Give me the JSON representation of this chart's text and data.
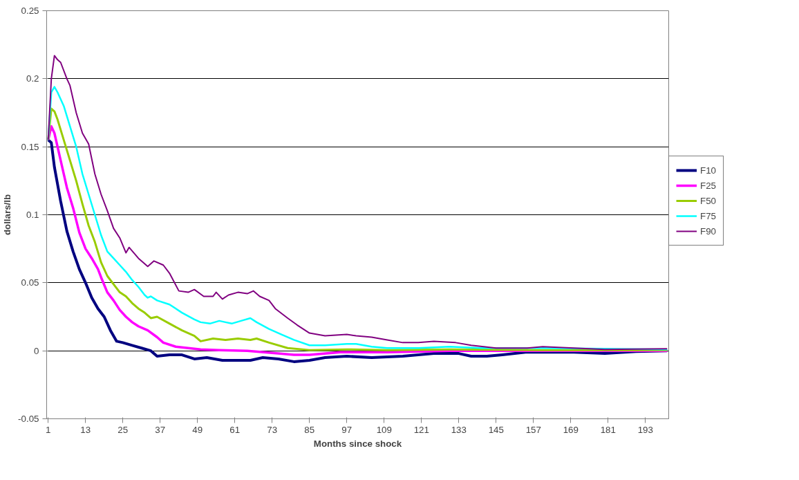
{
  "chart_data": {
    "type": "line",
    "xlabel": "Months since shock",
    "ylabel": "dollars/lb",
    "xlim": [
      0.5,
      200.5
    ],
    "xticks": [
      1,
      13,
      25,
      37,
      49,
      61,
      73,
      85,
      97,
      109,
      121,
      133,
      145,
      157,
      169,
      181,
      193
    ],
    "ylim": [
      -0.05,
      0.25
    ],
    "yticks": [
      -0.05,
      0,
      0.05,
      0.1,
      0.15,
      0.2,
      0.25
    ],
    "grid": "y",
    "legend": "right",
    "marker": "none",
    "line_style": "solid",
    "series": [
      {
        "name": "F10",
        "color": "#000080",
        "x": [
          1,
          2,
          3,
          5,
          7,
          9,
          11,
          13,
          15,
          17,
          19,
          21,
          23,
          25,
          28,
          31,
          34,
          36,
          40,
          44,
          48,
          52,
          57,
          62,
          66,
          70,
          75,
          80,
          85,
          90,
          97,
          105,
          115,
          125,
          133,
          137,
          142,
          147,
          155,
          170,
          180,
          190,
          200
        ],
        "values": [
          0.155,
          0.153,
          0.135,
          0.11,
          0.088,
          0.073,
          0.06,
          0.05,
          0.039,
          0.031,
          0.025,
          0.015,
          0.007,
          0.006,
          0.004,
          0.002,
          0.0,
          -0.004,
          -0.003,
          -0.003,
          -0.006,
          -0.005,
          -0.007,
          -0.007,
          -0.007,
          -0.005,
          -0.006,
          -0.008,
          -0.007,
          -0.005,
          -0.004,
          -0.005,
          -0.004,
          -0.002,
          -0.002,
          -0.004,
          -0.004,
          -0.003,
          -0.001,
          -0.001,
          -0.002,
          -0.0005,
          0.0
        ]
      },
      {
        "name": "F25",
        "color": "#ff00ff",
        "x": [
          1,
          2,
          3,
          5,
          7,
          9,
          11,
          13,
          15,
          17,
          18,
          20,
          22,
          24,
          26,
          28,
          30,
          33,
          36,
          38,
          42,
          46,
          50,
          56,
          65,
          75,
          80,
          85,
          95,
          110,
          130,
          200
        ],
        "values": [
          0.155,
          0.165,
          0.16,
          0.14,
          0.12,
          0.105,
          0.087,
          0.075,
          0.068,
          0.06,
          0.054,
          0.043,
          0.037,
          0.03,
          0.025,
          0.021,
          0.018,
          0.015,
          0.01,
          0.006,
          0.003,
          0.002,
          0.001,
          0.0005,
          0.0,
          -0.002,
          -0.003,
          -0.003,
          -0.001,
          -0.001,
          0.0,
          0.0
        ]
      },
      {
        "name": "F50",
        "color": "#99cc00",
        "x": [
          1,
          2,
          3,
          4,
          6,
          8,
          10,
          12,
          14,
          16,
          18,
          20,
          22,
          24,
          26,
          28,
          30,
          32,
          34,
          36,
          40,
          44,
          48,
          50,
          54,
          58,
          62,
          66,
          68,
          72,
          78,
          85,
          97,
          110,
          130,
          160,
          200
        ],
        "values": [
          0.155,
          0.178,
          0.176,
          0.17,
          0.155,
          0.14,
          0.125,
          0.108,
          0.092,
          0.08,
          0.065,
          0.055,
          0.049,
          0.043,
          0.04,
          0.035,
          0.031,
          0.028,
          0.024,
          0.025,
          0.02,
          0.015,
          0.011,
          0.007,
          0.009,
          0.008,
          0.009,
          0.008,
          0.009,
          0.006,
          0.002,
          0.0005,
          0.001,
          0.0005,
          0.001,
          0.0005,
          0.0005
        ]
      },
      {
        "name": "F75",
        "color": "#00ffff",
        "x": [
          1,
          2,
          3,
          4,
          6,
          8,
          10,
          12,
          14,
          16,
          18,
          20,
          22,
          24,
          26,
          28,
          30,
          32,
          33,
          34,
          36,
          40,
          44,
          48,
          50,
          53,
          56,
          58,
          60,
          63,
          66,
          68,
          72,
          76,
          80,
          85,
          90,
          97,
          100,
          105,
          110,
          120,
          130,
          140,
          160,
          200
        ],
        "values": [
          0.155,
          0.19,
          0.194,
          0.19,
          0.18,
          0.165,
          0.15,
          0.13,
          0.115,
          0.1,
          0.085,
          0.073,
          0.068,
          0.063,
          0.058,
          0.052,
          0.047,
          0.041,
          0.039,
          0.04,
          0.037,
          0.034,
          0.028,
          0.023,
          0.021,
          0.02,
          0.022,
          0.021,
          0.02,
          0.022,
          0.024,
          0.021,
          0.016,
          0.012,
          0.008,
          0.004,
          0.004,
          0.005,
          0.005,
          0.003,
          0.002,
          0.002,
          0.003,
          0.002,
          0.002,
          0.001
        ]
      },
      {
        "name": "F90",
        "color": "#800080",
        "x": [
          1,
          2,
          3,
          4,
          5,
          7,
          8,
          10,
          12,
          14,
          16,
          18,
          20,
          22,
          24,
          26,
          27,
          30,
          33,
          35,
          38,
          40,
          43,
          46,
          48,
          51,
          54,
          55,
          57,
          59,
          62,
          65,
          67,
          69,
          72,
          74,
          78,
          81,
          85,
          90,
          97,
          100,
          105,
          110,
          115,
          120,
          125,
          132,
          137,
          145,
          155,
          160,
          170,
          180,
          200
        ],
        "values": [
          0.155,
          0.2,
          0.217,
          0.214,
          0.212,
          0.2,
          0.195,
          0.175,
          0.16,
          0.152,
          0.13,
          0.115,
          0.103,
          0.09,
          0.083,
          0.072,
          0.076,
          0.068,
          0.062,
          0.066,
          0.063,
          0.057,
          0.044,
          0.043,
          0.045,
          0.04,
          0.04,
          0.043,
          0.038,
          0.041,
          0.043,
          0.042,
          0.044,
          0.04,
          0.037,
          0.031,
          0.024,
          0.019,
          0.013,
          0.011,
          0.012,
          0.011,
          0.01,
          0.008,
          0.006,
          0.006,
          0.007,
          0.006,
          0.004,
          0.002,
          0.002,
          0.003,
          0.002,
          0.001,
          0.0015
        ]
      }
    ]
  }
}
